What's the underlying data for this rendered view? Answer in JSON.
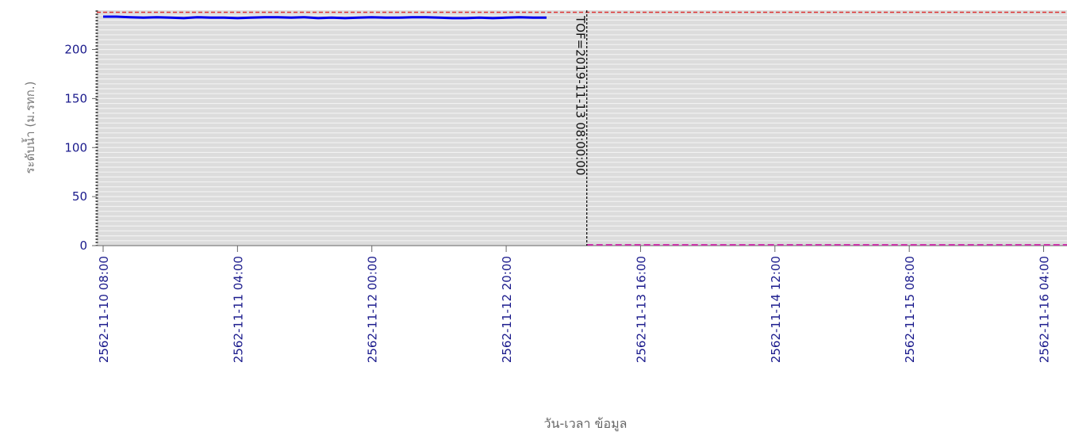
{
  "chart_data": {
    "type": "line",
    "xlabel": "วัน-เวลา ข้อมูล",
    "ylabel": "ระดับน้ำ (ม.รทก.)",
    "ylim": [
      0,
      240
    ],
    "xlim": [
      "2562-11-10 08:00",
      "2562-11-16 05:00"
    ],
    "yticks": [
      0,
      50,
      100,
      150,
      200
    ],
    "xticks": [
      "2562-11-10 08:00",
      "2562-11-11 04:00",
      "2562-11-12 00:00",
      "2562-11-12 20:00",
      "2562-11-13 16:00",
      "2562-11-14 12:00",
      "2562-11-15 08:00",
      "2562-11-16 04:00"
    ],
    "grid": true,
    "colors": {
      "series": "#0000ee",
      "tick_text": "#1a1a8c",
      "plot_bg": "#dcdcdc",
      "grid": "#f2f2f2",
      "bank_line": "#dd3333",
      "bottom_line": "#cc33aa",
      "marker_line": "#000000"
    },
    "series": [
      {
        "x": [
          "2562-11-10 08:00",
          "2562-11-10 10:00",
          "2562-11-10 12:00",
          "2562-11-10 14:00",
          "2562-11-10 16:00",
          "2562-11-10 18:00",
          "2562-11-10 20:00",
          "2562-11-10 22:00",
          "2562-11-11 00:00",
          "2562-11-11 02:00",
          "2562-11-11 04:00",
          "2562-11-11 06:00",
          "2562-11-11 08:00",
          "2562-11-11 10:00",
          "2562-11-11 12:00",
          "2562-11-11 14:00",
          "2562-11-11 16:00",
          "2562-11-11 18:00",
          "2562-11-11 20:00",
          "2562-11-11 22:00",
          "2562-11-12 00:00",
          "2562-11-12 02:00",
          "2562-11-12 04:00",
          "2562-11-12 06:00",
          "2562-11-12 08:00",
          "2562-11-12 10:00",
          "2562-11-12 12:00",
          "2562-11-12 14:00",
          "2562-11-12 16:00",
          "2562-11-12 18:00",
          "2562-11-12 20:00",
          "2562-11-12 22:00",
          "2562-11-13 00:00",
          "2562-11-13 02:00"
        ],
        "y": [
          233.5,
          233.5,
          233,
          232.5,
          233,
          232.5,
          232,
          233,
          232.5,
          232.5,
          232,
          232.5,
          233,
          233,
          232.5,
          233,
          232,
          232.5,
          232,
          232.5,
          233,
          232.5,
          232.5,
          233,
          233,
          232.5,
          232,
          232,
          232.5,
          232,
          232.5,
          233,
          232.5,
          232.5
        ]
      }
    ],
    "reference_lines": [
      {
        "axis": "y",
        "value": 238
      },
      {
        "axis": "y",
        "value": 0,
        "from": "2019-11-13 08:00:00"
      }
    ],
    "annotations": [
      {
        "axis": "x",
        "at": "2562-11-13 08:00",
        "label": "TOF=2019-11-13 08:00:00"
      }
    ]
  }
}
